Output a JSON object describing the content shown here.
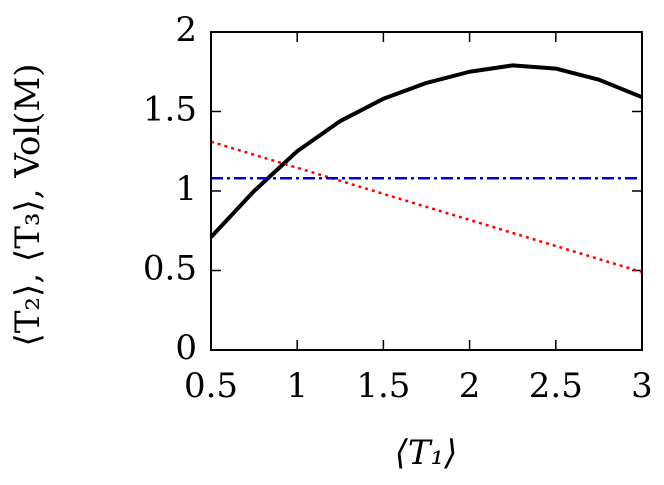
{
  "chart_data": {
    "type": "line",
    "xlabel": "⟨T₁⟩",
    "ylabel": "⟨T₂⟩, ⟨T₃⟩, Vol(M)",
    "x": [
      0.5,
      0.75,
      1,
      1.25,
      1.5,
      1.75,
      2,
      2.25,
      2.5,
      2.75,
      3
    ],
    "series": [
      {
        "color": "#000000",
        "width": 4,
        "dash": "solid",
        "values": [
          0.71,
          1.0,
          1.25,
          1.44,
          1.58,
          1.68,
          1.75,
          1.79,
          1.77,
          1.7,
          1.59
        ]
      },
      {
        "color": "#ff0000",
        "width": 2.5,
        "dash": "dotted",
        "values": [
          1.31,
          1.228,
          1.146,
          1.064,
          0.982,
          0.9,
          0.818,
          0.736,
          0.654,
          0.572,
          0.49
        ]
      },
      {
        "color": "#0000dd",
        "width": 2.5,
        "dash": "dashdot",
        "values": [
          1.08,
          1.08,
          1.08,
          1.08,
          1.08,
          1.08,
          1.08,
          1.08,
          1.08,
          1.08,
          1.08
        ]
      }
    ],
    "xlim": [
      0.5,
      3
    ],
    "xticks": [
      0.5,
      1,
      1.5,
      2,
      2.5,
      3
    ],
    "ylim": [
      0,
      2
    ],
    "yticks": [
      0,
      0.5,
      1,
      1.5,
      2
    ]
  }
}
